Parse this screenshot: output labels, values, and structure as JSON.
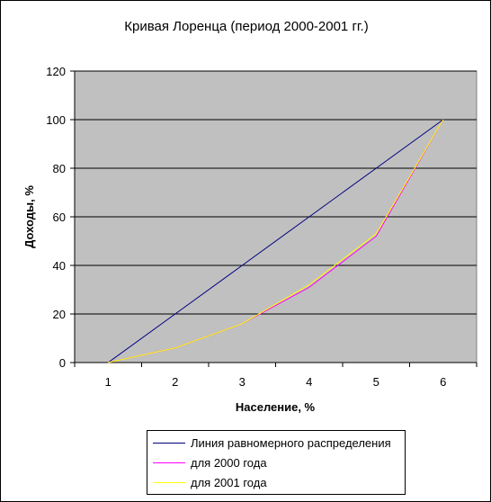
{
  "chart_data": {
    "type": "line",
    "title": "Кривая Лоренца (период 2000-2001 гг.)",
    "xlabel": "Население, %",
    "ylabel": "Доходы, %",
    "categories": [
      "1",
      "2",
      "3",
      "4",
      "5",
      "6"
    ],
    "ylim": [
      0,
      120
    ],
    "yticks": [
      0,
      20,
      40,
      60,
      80,
      100,
      120
    ],
    "grid": true,
    "legend_position": "bottom",
    "plot_background": "#c0c0c0",
    "series": [
      {
        "name": "Линия равномерного распределения",
        "color": "#000080",
        "values": [
          0,
          20,
          40,
          60,
          80,
          100
        ]
      },
      {
        "name": "для 2000 года",
        "color": "#ff00ff",
        "values": [
          0,
          6,
          16,
          31,
          52,
          100
        ]
      },
      {
        "name": "для 2001 года",
        "color": "#ffff00",
        "values": [
          0,
          6,
          16,
          32,
          53,
          100
        ]
      }
    ]
  }
}
